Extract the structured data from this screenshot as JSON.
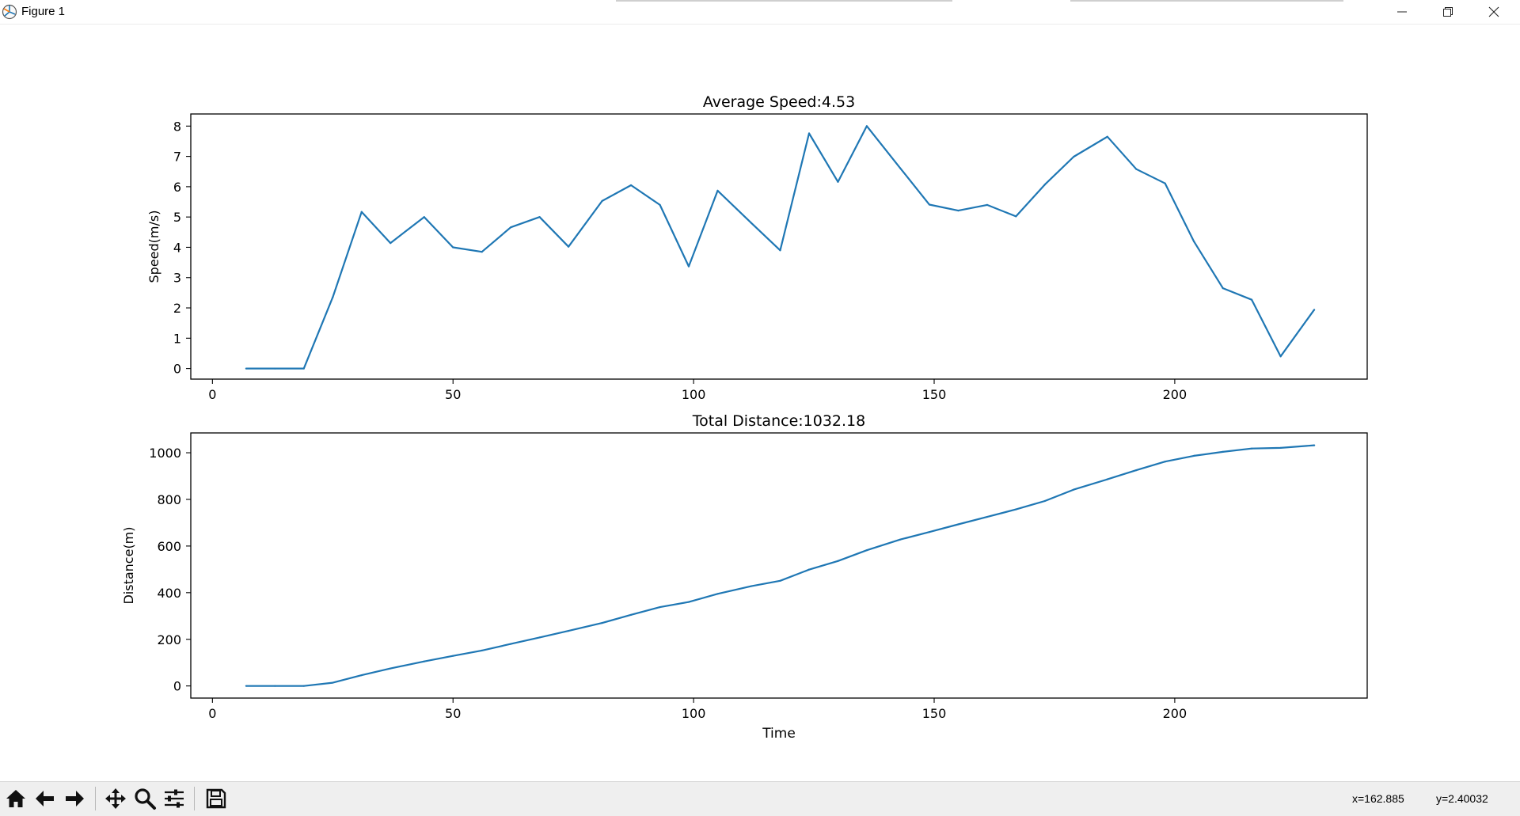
{
  "window": {
    "title": "Figure 1",
    "icons": [
      "figure-icon",
      "minimize-icon",
      "restore-icon",
      "close-icon"
    ]
  },
  "toolbar": {
    "buttons": [
      "home-icon",
      "back-icon",
      "forward-icon",
      "pan-icon",
      "zoom-icon",
      "configure-subplots-icon",
      "save-icon"
    ],
    "x_readout": "x=162.885",
    "y_readout": "y=2.40032"
  },
  "colors": {
    "line": "#1f77b4",
    "toolbar_bg": "#efefef"
  },
  "chart_data": [
    {
      "type": "line",
      "title": "Average Speed:4.53",
      "xlabel": "",
      "ylabel": "Speed(m/s)",
      "xlim": [
        -4.5,
        240
      ],
      "ylim": [
        -0.35,
        8.4
      ],
      "xticks": [
        0,
        50,
        100,
        150,
        200
      ],
      "yticks": [
        0,
        1,
        2,
        3,
        4,
        5,
        6,
        7,
        8
      ],
      "grid": false,
      "x": [
        7,
        13,
        19,
        25,
        31,
        37,
        44,
        50,
        56,
        62,
        68,
        74,
        81,
        87,
        93,
        99,
        105,
        112,
        118,
        124,
        130,
        136,
        143,
        149,
        155,
        161,
        167,
        173,
        179,
        186,
        192,
        198,
        204,
        210,
        216,
        222,
        229
      ],
      "values": [
        0,
        0,
        0,
        2.35,
        5.17,
        4.14,
        5.0,
        4.0,
        3.85,
        4.66,
        5.0,
        4.02,
        5.53,
        6.05,
        5.4,
        3.37,
        5.87,
        4.8,
        3.9,
        7.76,
        6.16,
        8.0,
        6.6,
        5.41,
        5.21,
        5.4,
        5.02,
        6.07,
        6.99,
        7.65,
        6.58,
        6.11,
        4.19,
        2.65,
        2.27,
        0.4,
        1.94
      ]
    },
    {
      "type": "line",
      "title": "Total Distance:1032.18",
      "xlabel": "Time",
      "ylabel": "Distance(m)",
      "xlim": [
        -4.5,
        240
      ],
      "ylim": [
        -52,
        1085
      ],
      "xticks": [
        0,
        50,
        100,
        150,
        200
      ],
      "yticks": [
        0,
        200,
        400,
        600,
        800,
        1000
      ],
      "grid": false,
      "x": [
        7,
        13,
        19,
        25,
        31,
        37,
        44,
        50,
        56,
        62,
        68,
        74,
        81,
        87,
        93,
        99,
        105,
        112,
        118,
        124,
        130,
        136,
        143,
        149,
        155,
        161,
        167,
        173,
        179,
        186,
        192,
        198,
        204,
        210,
        216,
        222,
        229
      ],
      "values": [
        0,
        0,
        0,
        14,
        46,
        75,
        105,
        129,
        152,
        180,
        208,
        236,
        270,
        305,
        338,
        360,
        395,
        428,
        451,
        499,
        536,
        582,
        628,
        660,
        693,
        725,
        757,
        793,
        842,
        886,
        925,
        962,
        987,
        1004,
        1018,
        1021,
        1032
      ]
    }
  ]
}
